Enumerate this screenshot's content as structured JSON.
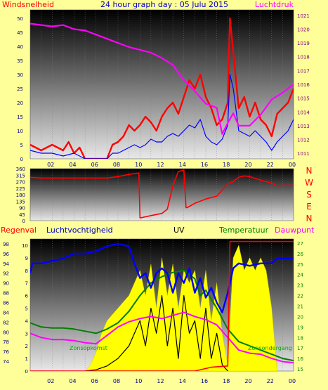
{
  "chart_data": [
    {
      "type": "line",
      "title": "24 hour graph day : 05 Julu 2015",
      "ylabel_left": "Windsnelheid",
      "ylabel_right": "Luchtdruk",
      "colors": {
        "gust": "#ff0000",
        "avg": "#0000ff",
        "pressure": "#ff00ff"
      },
      "x_ticks": [
        "02",
        "04",
        "06",
        "08",
        "10",
        "12",
        "14",
        "16",
        "18",
        "20",
        "22",
        "00"
      ],
      "ylim_left": [
        0,
        53
      ],
      "y_ticks_left": [
        0,
        5,
        10,
        15,
        20,
        25,
        30,
        35,
        40,
        45,
        50
      ],
      "ylim_right": [
        1010.6,
        1021.4
      ],
      "y_ticks_right": [
        1011,
        1012,
        1013,
        1014,
        1015,
        1016,
        1017,
        1018,
        1019,
        1020,
        1021
      ],
      "series": [
        {
          "key": "gust",
          "axis": "left",
          "x": [
            0,
            1,
            2,
            3,
            3.5,
            4,
            4.5,
            5,
            5.5,
            6,
            6.5,
            7,
            7.5,
            8,
            8.5,
            9,
            9.5,
            10,
            10.5,
            11,
            11.5,
            12,
            12.5,
            13,
            13.5,
            14,
            14.5,
            15,
            15.5,
            16,
            16.5,
            17,
            17.5,
            18,
            18.2,
            18.5,
            19,
            19.5,
            20,
            20.5,
            21,
            21.5,
            22,
            22.5,
            23,
            23.5,
            24
          ],
          "values": [
            5,
            3,
            5,
            3,
            6,
            2,
            4,
            0,
            0,
            0,
            0,
            0,
            5,
            6,
            8,
            12,
            10,
            12,
            15,
            13,
            10,
            15,
            18,
            20,
            16,
            22,
            28,
            25,
            30,
            22,
            18,
            12,
            14,
            20,
            50,
            38,
            18,
            22,
            15,
            20,
            14,
            12,
            8,
            16,
            18,
            20,
            25
          ]
        },
        {
          "key": "avg",
          "axis": "left",
          "x": [
            0,
            1,
            2,
            3,
            4,
            4.5,
            5,
            5.5,
            6,
            7,
            7.5,
            8,
            8.5,
            9,
            9.5,
            10,
            10.5,
            11,
            11.5,
            12,
            12.5,
            13,
            13.5,
            14,
            14.5,
            15,
            15.5,
            16,
            16.5,
            17,
            17.5,
            18,
            18.2,
            18.5,
            19,
            19.5,
            20,
            20.5,
            21,
            21.5,
            22,
            22.5,
            23,
            23.5,
            24
          ],
          "values": [
            3,
            2,
            2,
            1,
            2,
            1,
            0,
            0,
            0,
            0,
            2,
            2,
            3,
            4,
            5,
            4,
            5,
            7,
            6,
            6,
            8,
            9,
            8,
            10,
            12,
            11,
            14,
            8,
            6,
            5,
            7,
            12,
            30,
            25,
            10,
            9,
            8,
            10,
            8,
            6,
            3,
            6,
            8,
            10,
            14
          ]
        },
        {
          "key": "pressure",
          "axis": "right",
          "x": [
            0,
            1,
            2,
            3,
            4,
            5,
            6,
            7,
            8,
            9,
            10,
            11,
            12,
            13,
            14,
            15,
            16,
            17,
            17.5,
            18,
            18.5,
            19,
            20,
            21,
            22,
            23,
            24
          ],
          "values": [
            1020.4,
            1020.3,
            1020.2,
            1020.3,
            1020.0,
            1019.9,
            1019.6,
            1019.3,
            1019.0,
            1018.7,
            1018.5,
            1018.3,
            1017.9,
            1017.4,
            1016.3,
            1015.5,
            1014.6,
            1014.3,
            1012.4,
            1013.2,
            1013.9,
            1013.0,
            1013.0,
            1013.8,
            1014.9,
            1015.4,
            1016.0
          ]
        }
      ]
    },
    {
      "type": "line",
      "ylabel_right": [
        "N",
        "W",
        "S",
        "E",
        "N"
      ],
      "colors": {
        "direction": "#ff0000"
      },
      "x_ticks": [
        "02",
        "04",
        "06",
        "08",
        "10",
        "12",
        "14",
        "16",
        "18",
        "20",
        "22",
        "00"
      ],
      "ylim": [
        0,
        360
      ],
      "y_ticks": [
        0,
        45,
        90,
        135,
        180,
        225,
        270,
        315,
        360
      ],
      "series": [
        {
          "key": "direction",
          "x": [
            0,
            1,
            2,
            3,
            4,
            5,
            6,
            7,
            8,
            9,
            9.9,
            10,
            10.1,
            11,
            12,
            12.5,
            13,
            13.5,
            14,
            14.2,
            14.3,
            15,
            16,
            17,
            18,
            18.5,
            19,
            19.5,
            20,
            21,
            22,
            22.5,
            23,
            24
          ],
          "values": [
            300,
            295,
            295,
            295,
            295,
            295,
            295,
            295,
            305,
            320,
            330,
            20,
            20,
            35,
            50,
            80,
            240,
            340,
            350,
            90,
            90,
            120,
            150,
            170,
            255,
            270,
            300,
            310,
            305,
            280,
            260,
            240,
            245,
            245
          ]
        }
      ]
    },
    {
      "type": "line",
      "legend": [
        "Regenval",
        "Luchtvochtigheid",
        "UV",
        "Temperatuur",
        "Dauwpunt"
      ],
      "annotations": [
        "Zonsopkomst",
        "Zonsondergang"
      ],
      "colors": {
        "rain": "#ff0000",
        "humidity": "#0000ff",
        "uv": "#000000",
        "solar": "#ffff00",
        "temperature": "#008000",
        "dewpoint": "#ff00ff"
      },
      "x_ticks": [
        "02",
        "04",
        "06",
        "08",
        "10",
        "12",
        "14",
        "16",
        "18",
        "20",
        "22",
        "00"
      ],
      "ylim_left_rain": [
        0,
        10.5
      ],
      "y_ticks_left_rain": [
        0,
        1,
        2,
        3,
        4,
        5,
        6,
        7,
        8,
        9,
        10
      ],
      "ylim_left_humidity": [
        72,
        99
      ],
      "y_ticks_left_humidity": [
        74,
        76,
        78,
        80,
        82,
        84,
        86,
        88,
        90,
        92,
        94,
        96,
        98
      ],
      "ylim_right_temp": [
        14.8,
        27.4
      ],
      "y_ticks_right_temp": [
        15,
        16,
        17,
        18,
        19,
        20,
        21,
        22,
        23,
        24,
        25,
        26,
        27
      ],
      "series": [
        {
          "key": "humidity",
          "axis": "humidity",
          "x": [
            0,
            0.2,
            1,
            2,
            3,
            4,
            5,
            6,
            7,
            8,
            9,
            9.5,
            10,
            10.5,
            11,
            11.5,
            12,
            12.5,
            13,
            13.5,
            14,
            14.5,
            15,
            15.5,
            16,
            16.5,
            17,
            17.5,
            18,
            18.5,
            19,
            20,
            21,
            22,
            22.5,
            23,
            24
          ],
          "values": [
            92,
            94,
            94,
            94.5,
            95,
            96,
            96,
            96.5,
            97.5,
            98,
            97.5,
            94,
            91,
            92,
            89,
            92,
            93,
            92,
            88,
            92,
            90,
            93,
            88,
            91,
            87,
            89,
            86,
            84,
            88,
            93,
            94,
            93.5,
            94,
            94,
            95,
            95,
            95
          ]
        },
        {
          "key": "uv",
          "axis": "rain",
          "x": [
            5,
            6,
            7,
            8,
            9,
            10,
            10.5,
            11,
            11.5,
            12,
            12.5,
            13,
            13.5,
            14,
            14.5,
            15,
            15.5,
            16,
            16.5,
            17,
            17.5,
            18
          ],
          "values": [
            0,
            0.1,
            0.4,
            1,
            2,
            4,
            2,
            5,
            3,
            6,
            2,
            5,
            1,
            6,
            3,
            4,
            1,
            5,
            1,
            3,
            0.5,
            0
          ]
        },
        {
          "key": "solar",
          "axis": "rain",
          "x": [
            5,
            5.5,
            6,
            6.5,
            7,
            7.5,
            8,
            8.5,
            9,
            9.5,
            10,
            10.5,
            11,
            11.5,
            12,
            12.5,
            13,
            13.5,
            14,
            14.5,
            15,
            15.5,
            16,
            16.5,
            17,
            17.5,
            18,
            18.5,
            19,
            19.5,
            20,
            20.5,
            21,
            21.5,
            22,
            22.5
          ],
          "values": [
            0,
            0.5,
            1.5,
            3,
            4,
            4.5,
            5,
            5.5,
            6,
            7,
            8,
            6,
            8.5,
            5,
            9,
            6,
            8.5,
            5,
            8,
            7,
            8,
            5,
            8,
            4,
            7,
            3,
            0.5,
            9,
            10,
            8,
            9,
            8,
            9,
            8,
            5,
            0
          ]
        },
        {
          "key": "temperature",
          "axis": "temp",
          "x": [
            0,
            1,
            2,
            3,
            4,
            5,
            6,
            7,
            8,
            9,
            10,
            11,
            12,
            13,
            14,
            15,
            15.5,
            16,
            17,
            18,
            19,
            20,
            21,
            22,
            23,
            24
          ],
          "values": [
            19.4,
            19.0,
            18.9,
            18.9,
            18.8,
            18.6,
            18.4,
            18.8,
            19.4,
            20.5,
            22.0,
            23.2,
            23.8,
            24.2,
            24.4,
            23.6,
            22.0,
            22.5,
            20.8,
            18.8,
            17.6,
            17.2,
            16.8,
            16.4,
            16.0,
            15.8
          ]
        },
        {
          "key": "dewpoint",
          "axis": "temp",
          "x": [
            0,
            1,
            2,
            3,
            4,
            5,
            6,
            7,
            8,
            9,
            10,
            11,
            12,
            13,
            14,
            15,
            16,
            17,
            18,
            19,
            20,
            21,
            22,
            23,
            24
          ],
          "values": [
            18.4,
            18.0,
            17.8,
            17.8,
            17.7,
            17.5,
            17.4,
            18.2,
            19.0,
            19.5,
            19.8,
            20.0,
            19.8,
            20.1,
            20.4,
            20.0,
            19.7,
            19.2,
            18.0,
            16.8,
            16.5,
            16.4,
            16.0,
            15.7,
            15.6
          ]
        },
        {
          "key": "rain",
          "axis": "rain",
          "x": [
            0,
            15,
            16.5,
            18,
            18.2,
            24
          ],
          "values": [
            0,
            0,
            0.3,
            0.4,
            10.3,
            10.3
          ]
        }
      ]
    }
  ]
}
